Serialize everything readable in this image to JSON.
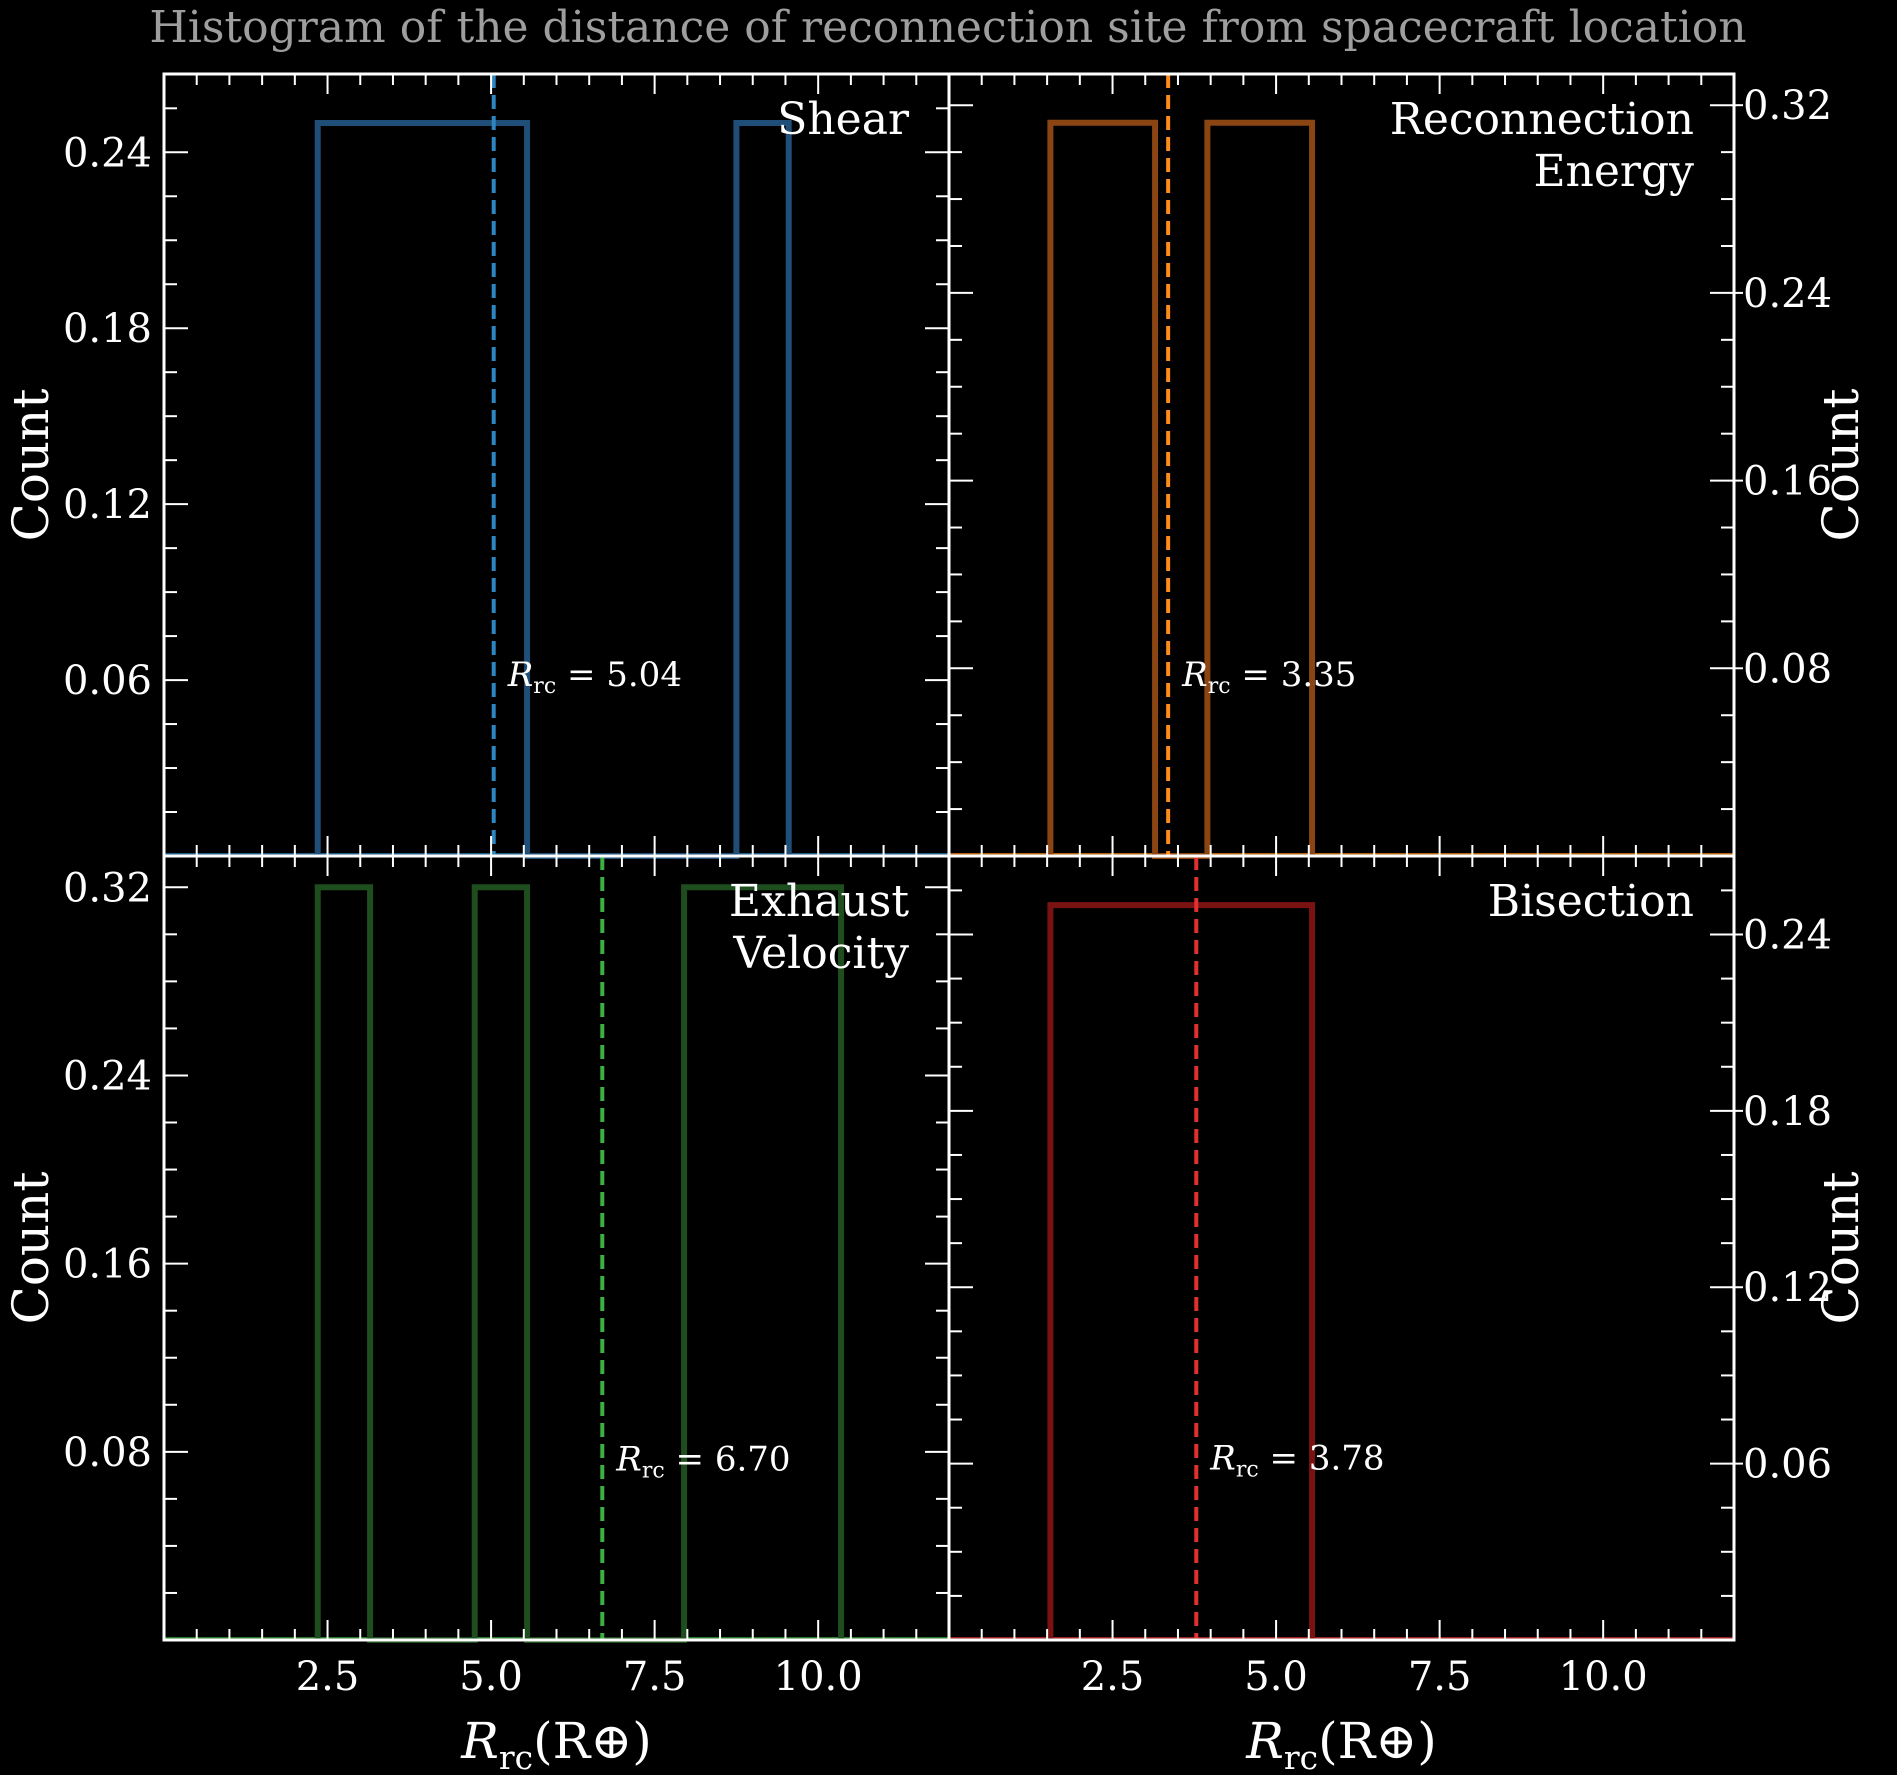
{
  "title": "Histogram of the distance of reconnection site from spacecraft location",
  "colors": {
    "background": "#000000",
    "axes": "#ffffff",
    "title": "#9e9e9e",
    "text": "#ffffff"
  },
  "shared": {
    "xlabel": "R_rc(R_⊕)",
    "xlim": [
      0,
      12
    ],
    "x_major_ticks": [
      2.5,
      5.0,
      7.5,
      10.0
    ],
    "x_tick_labels": [
      "2.5",
      "5.0",
      "7.5",
      "10.0"
    ],
    "ylabel": "Count",
    "annotation_prefix": "R_rc = "
  },
  "chart_data": [
    {
      "type": "histogram",
      "name": "Shear",
      "label_lines": [
        "Shear"
      ],
      "color": "#1f4e79",
      "median_color": "#2e86c1",
      "ylim": [
        0,
        0.2667
      ],
      "y_ticks": [
        0.06,
        0.12,
        0.18,
        0.24
      ],
      "y_tick_labels": [
        "0.06",
        "0.12",
        "0.18",
        "0.24"
      ],
      "y_minor_step": 0.015,
      "yaxis_side": "left",
      "bin_edges": [
        2.35,
        3.15,
        3.95,
        4.75,
        5.55,
        6.35,
        7.15,
        7.95,
        8.75,
        9.55
      ],
      "counts": [
        0.25,
        0.25,
        0.25,
        0.25,
        0,
        0,
        0,
        0,
        0.25
      ],
      "median": 5.04,
      "median_label": "5.04",
      "annotation_y": 0.058
    },
    {
      "type": "histogram",
      "name": "Reconnection Energy",
      "label_lines": [
        "Reconnection",
        "Energy"
      ],
      "color": "#8b4513",
      "median_color": "#ff8c1a",
      "ylim": [
        0,
        0.3333
      ],
      "y_ticks": [
        0.08,
        0.16,
        0.24,
        0.32
      ],
      "y_tick_labels": [
        "0.08",
        "0.16",
        "0.24",
        "0.32"
      ],
      "y_minor_step": 0.02,
      "yaxis_side": "right",
      "bin_edges": [
        1.55,
        2.35,
        3.15,
        3.95,
        4.75,
        5.55
      ],
      "counts": [
        0.3125,
        0.3125,
        0,
        0.3125,
        0.3125
      ],
      "median": 3.35,
      "median_label": "3.35",
      "annotation_y": 0.0725
    },
    {
      "type": "histogram",
      "name": "Exhaust Velocity",
      "label_lines": [
        "Exhaust",
        "Velocity"
      ],
      "color": "#1e4d1e",
      "median_color": "#3cb043",
      "ylim": [
        0,
        0.3333
      ],
      "y_ticks": [
        0.08,
        0.16,
        0.24,
        0.32
      ],
      "y_tick_labels": [
        "0.08",
        "0.16",
        "0.24",
        "0.32"
      ],
      "y_minor_step": 0.02,
      "yaxis_side": "left",
      "bin_edges": [
        2.35,
        3.15,
        3.95,
        4.75,
        5.55,
        6.35,
        7.15,
        7.95,
        8.75,
        9.55,
        10.35
      ],
      "counts": [
        0.32,
        0,
        0,
        0.32,
        0,
        0,
        0,
        0.32,
        0.32,
        0.32
      ],
      "median": 6.7,
      "median_label": "6.70",
      "annotation_y": 0.072
    },
    {
      "type": "histogram",
      "name": "Bisection",
      "label_lines": [
        "Bisection"
      ],
      "color": "#7a1212",
      "median_color": "#e03030",
      "ylim": [
        0,
        0.2667
      ],
      "y_ticks": [
        0.06,
        0.12,
        0.18,
        0.24
      ],
      "y_tick_labels": [
        "0.06",
        "0.12",
        "0.18",
        "0.24"
      ],
      "y_minor_step": 0.015,
      "yaxis_side": "right",
      "bin_edges": [
        1.55,
        2.35,
        3.15,
        3.95,
        4.75,
        5.55
      ],
      "counts": [
        0.25,
        0.25,
        0.25,
        0.25,
        0.25
      ],
      "median": 3.78,
      "median_label": "3.78",
      "annotation_y": 0.058
    }
  ]
}
